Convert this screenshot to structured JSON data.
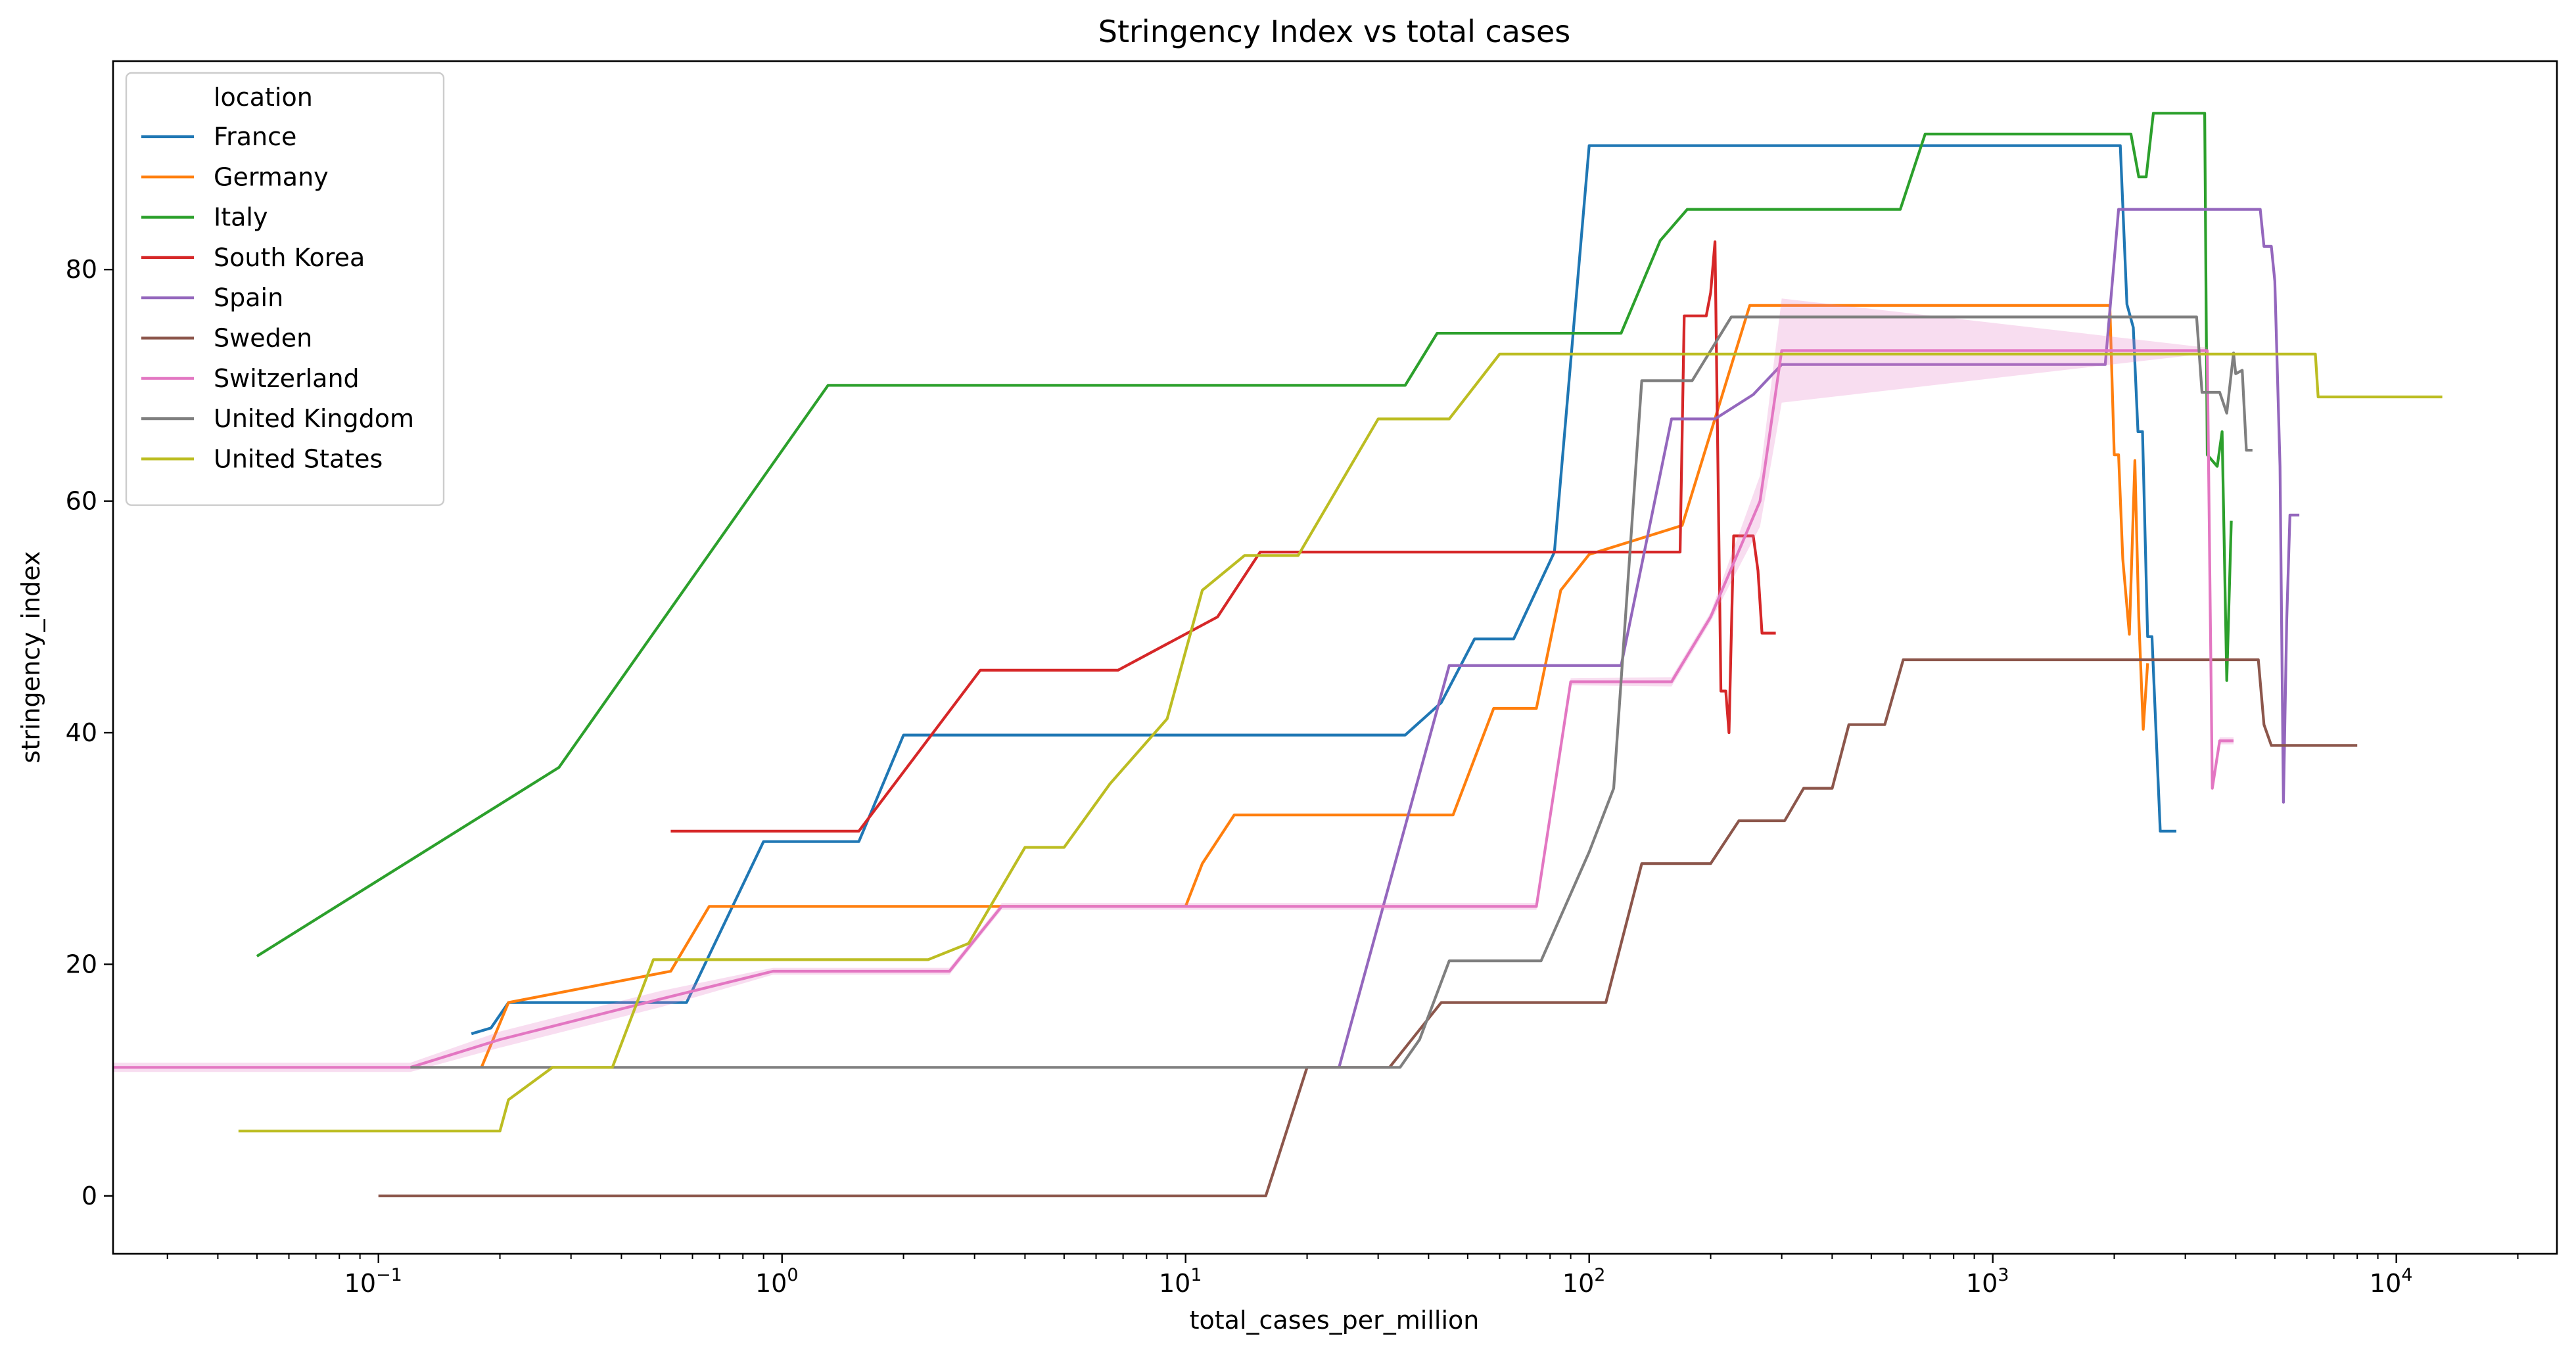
{
  "chart_data": {
    "type": "line",
    "title": "Stringency Index vs total cases",
    "xlabel": "total_cases_per_million",
    "ylabel": "stringency_index",
    "xscale": "log",
    "xlim": [
      0.022,
      25000
    ],
    "ylim": [
      -5,
      98
    ],
    "x_ticks": [
      {
        "value": 0.1,
        "base": "10",
        "exp": "−1"
      },
      {
        "value": 1,
        "base": "10",
        "exp": "0"
      },
      {
        "value": 10,
        "base": "10",
        "exp": "1"
      },
      {
        "value": 100,
        "base": "10",
        "exp": "2"
      },
      {
        "value": 1000,
        "base": "10",
        "exp": "3"
      },
      {
        "value": 10000,
        "base": "10",
        "exp": "4"
      }
    ],
    "y_ticks": [
      0,
      20,
      40,
      60,
      80
    ],
    "grid": false,
    "legend": {
      "title": "location",
      "placement": "top-left"
    },
    "series": [
      {
        "name": "France",
        "color": "#1f77b4",
        "points": [
          [
            0.17,
            14
          ],
          [
            0.19,
            14.5
          ],
          [
            0.21,
            16.7
          ],
          [
            0.58,
            16.7
          ],
          [
            0.9,
            30.6
          ],
          [
            1.55,
            30.6
          ],
          [
            2.0,
            39.8
          ],
          [
            35,
            39.8
          ],
          [
            43,
            42.6
          ],
          [
            52,
            48.1
          ],
          [
            65,
            48.1
          ],
          [
            82,
            55.6
          ],
          [
            100,
            90.7
          ],
          [
            2070,
            90.7
          ],
          [
            2150,
            77
          ],
          [
            2230,
            75
          ],
          [
            2290,
            66
          ],
          [
            2350,
            66
          ],
          [
            2420,
            48.3
          ],
          [
            2480,
            48.3
          ],
          [
            2600,
            31.5
          ],
          [
            2850,
            31.5
          ]
        ]
      },
      {
        "name": "Germany",
        "color": "#ff7f0e",
        "points": [
          [
            0.18,
            11.1
          ],
          [
            0.21,
            16.7
          ],
          [
            0.53,
            19.4
          ],
          [
            0.66,
            25
          ],
          [
            10,
            25
          ],
          [
            11,
            28.7
          ],
          [
            13.2,
            32.9
          ],
          [
            46,
            32.9
          ],
          [
            58,
            42.1
          ],
          [
            74,
            42.1
          ],
          [
            85,
            52.3
          ],
          [
            100,
            55.4
          ],
          [
            170,
            57.9
          ],
          [
            250,
            76.9
          ],
          [
            1950,
            76.9
          ],
          [
            2000,
            64
          ],
          [
            2050,
            64
          ],
          [
            2100,
            55
          ],
          [
            2180,
            48.5
          ],
          [
            2250,
            63.5
          ],
          [
            2300,
            50
          ],
          [
            2360,
            40.3
          ],
          [
            2420,
            46
          ]
        ]
      },
      {
        "name": "Italy",
        "color": "#2ca02c",
        "points": [
          [
            0.05,
            20.7
          ],
          [
            0.28,
            37
          ],
          [
            1.3,
            70
          ],
          [
            35,
            70
          ],
          [
            42,
            74.5
          ],
          [
            120,
            74.5
          ],
          [
            150,
            82.5
          ],
          [
            175,
            85.2
          ],
          [
            590,
            85.2
          ],
          [
            680,
            91.7
          ],
          [
            2200,
            91.7
          ],
          [
            2300,
            88
          ],
          [
            2400,
            88
          ],
          [
            2500,
            93.5
          ],
          [
            3350,
            93.5
          ],
          [
            3400,
            64
          ],
          [
            3600,
            63
          ],
          [
            3700,
            66
          ],
          [
            3800,
            44.5
          ],
          [
            3900,
            58.3
          ]
        ]
      },
      {
        "name": "South Korea",
        "color": "#d62728",
        "points": [
          [
            0.53,
            31.5
          ],
          [
            1.55,
            31.5
          ],
          [
            3.1,
            45.4
          ],
          [
            6.8,
            45.4
          ],
          [
            12,
            50
          ],
          [
            15.3,
            55.6
          ],
          [
            168,
            55.6
          ],
          [
            172,
            76
          ],
          [
            195,
            76
          ],
          [
            200,
            78
          ],
          [
            205,
            82.4
          ],
          [
            212,
            43.6
          ],
          [
            218,
            43.6
          ],
          [
            222,
            40
          ],
          [
            228,
            57
          ],
          [
            255,
            57
          ],
          [
            262,
            54
          ],
          [
            268,
            48.6
          ],
          [
            290,
            48.6
          ]
        ]
      },
      {
        "name": "Spain",
        "color": "#9467bd",
        "points": [
          [
            24,
            11.1
          ],
          [
            45,
            45.8
          ],
          [
            120,
            45.8
          ],
          [
            160,
            67.1
          ],
          [
            205,
            67.1
          ],
          [
            255,
            69.2
          ],
          [
            300,
            71.8
          ],
          [
            1900,
            71.8
          ],
          [
            2050,
            85.2
          ],
          [
            4600,
            85.2
          ],
          [
            4700,
            82
          ],
          [
            4900,
            82
          ],
          [
            5000,
            79
          ],
          [
            5150,
            63
          ],
          [
            5250,
            34
          ],
          [
            5350,
            49.7
          ],
          [
            5450,
            58.8
          ],
          [
            5750,
            58.8
          ]
        ]
      },
      {
        "name": "Sweden",
        "color": "#8c564b",
        "points": [
          [
            0.1,
            0
          ],
          [
            15.8,
            0
          ],
          [
            20,
            11.1
          ],
          [
            32,
            11.1
          ],
          [
            43,
            16.7
          ],
          [
            110,
            16.7
          ],
          [
            135,
            28.7
          ],
          [
            200,
            28.7
          ],
          [
            235,
            32.4
          ],
          [
            305,
            32.4
          ],
          [
            340,
            35.2
          ],
          [
            400,
            35.2
          ],
          [
            440,
            40.7
          ],
          [
            540,
            40.7
          ],
          [
            600,
            46.3
          ],
          [
            4550,
            46.3
          ],
          [
            4700,
            40.7
          ],
          [
            4900,
            38.9
          ],
          [
            8000,
            38.9
          ]
        ]
      },
      {
        "name": "Switzerland",
        "color": "#e377c2",
        "points": [
          [
            0.022,
            11.1
          ],
          [
            0.12,
            11.1
          ],
          [
            0.2,
            13.5
          ],
          [
            0.5,
            17
          ],
          [
            0.95,
            19.4
          ],
          [
            2.6,
            19.4
          ],
          [
            3.5,
            25
          ],
          [
            74,
            25
          ],
          [
            90,
            44.4
          ],
          [
            160,
            44.4
          ],
          [
            200,
            50
          ],
          [
            265,
            60
          ],
          [
            300,
            73
          ],
          [
            3300,
            73
          ],
          [
            3400,
            73
          ],
          [
            3500,
            35.2
          ],
          [
            3650,
            39.3
          ],
          [
            3950,
            39.3
          ]
        ],
        "band": [
          0.4,
          0.4,
          0.7,
          0.7,
          0.3,
          0.3,
          0.3,
          0.3,
          0.3,
          0.4,
          0.4,
          2.2,
          4.5,
          0.3,
          0.3,
          0.3,
          0.3,
          0.3
        ]
      },
      {
        "name": "United Kingdom",
        "color": "#7f7f7f",
        "points": [
          [
            0.12,
            11.1
          ],
          [
            34,
            11.1
          ],
          [
            38,
            13.5
          ],
          [
            45,
            20.3
          ],
          [
            76,
            20.3
          ],
          [
            100,
            29.7
          ],
          [
            115,
            35.2
          ],
          [
            135,
            70.4
          ],
          [
            180,
            70.4
          ],
          [
            225,
            75.9
          ],
          [
            3200,
            75.9
          ],
          [
            3300,
            69.4
          ],
          [
            3650,
            69.4
          ],
          [
            3800,
            67.6
          ],
          [
            3950,
            72.8
          ],
          [
            4000,
            71
          ],
          [
            4150,
            71.3
          ],
          [
            4250,
            64.4
          ],
          [
            4400,
            64.4
          ]
        ]
      },
      {
        "name": "United States",
        "color": "#bcbd22",
        "points": [
          [
            0.045,
            5.6
          ],
          [
            0.2,
            5.6
          ],
          [
            0.21,
            8.3
          ],
          [
            0.27,
            11.1
          ],
          [
            0.38,
            11.1
          ],
          [
            0.48,
            20.4
          ],
          [
            2.3,
            20.4
          ],
          [
            2.9,
            21.8
          ],
          [
            4.0,
            30.1
          ],
          [
            5.0,
            30.1
          ],
          [
            6.5,
            35.6
          ],
          [
            9.0,
            41.2
          ],
          [
            11,
            52.3
          ],
          [
            14,
            55.3
          ],
          [
            19,
            55.3
          ],
          [
            30,
            67.1
          ],
          [
            45,
            67.1
          ],
          [
            60,
            72.7
          ],
          [
            6300,
            72.7
          ],
          [
            6400,
            69
          ],
          [
            13000,
            69
          ]
        ]
      }
    ]
  }
}
